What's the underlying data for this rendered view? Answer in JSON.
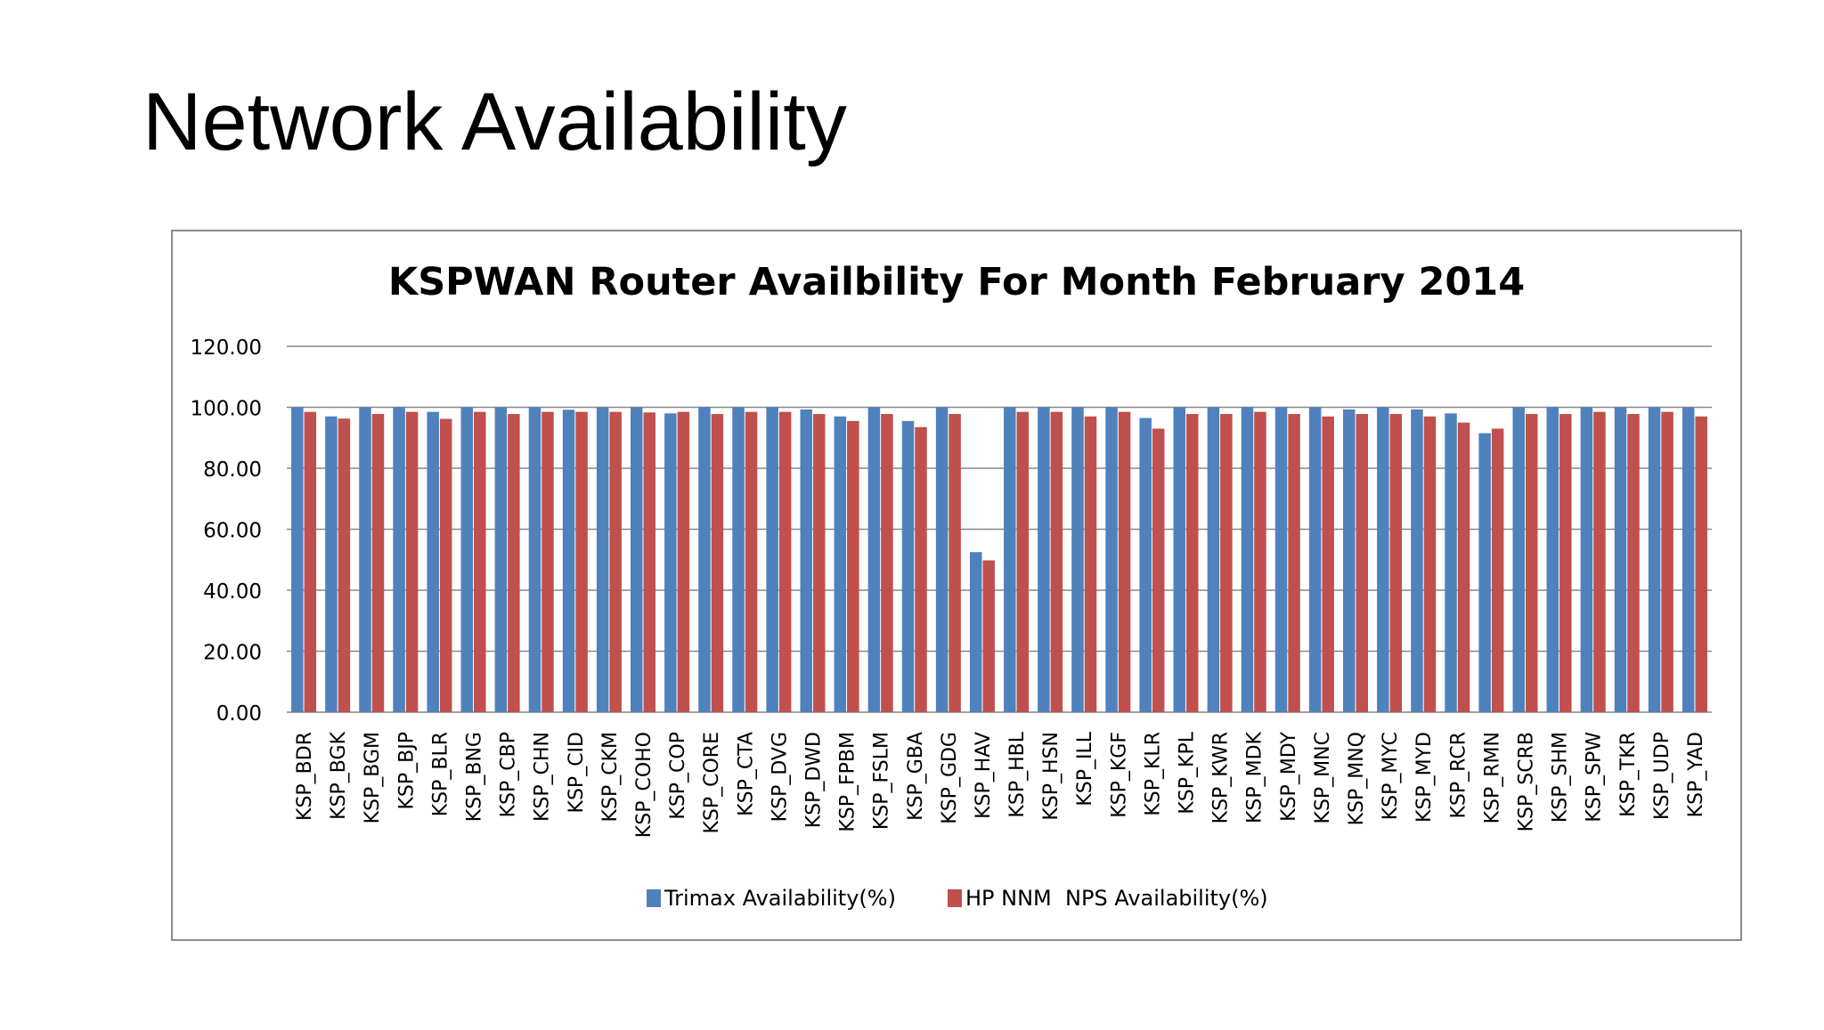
{
  "slide": {
    "title": "Network Availability"
  },
  "colors": {
    "series_1": "#4f81bd",
    "series_2": "#c0504d",
    "gridline": "#878787",
    "frame_border": "#8c8c8c",
    "text": "#000000"
  },
  "chart_data": {
    "type": "bar",
    "title": "KSPWAN Router Availbility For Month February 2014",
    "xlabel": "",
    "ylabel": "",
    "ylim": [
      0,
      120
    ],
    "y_ticks": [
      "0.00",
      "20.00",
      "40.00",
      "60.00",
      "80.00",
      "100.00",
      "120.00"
    ],
    "grid": true,
    "legend_position": "bottom",
    "categories": [
      "KSP_BDR",
      "KSP_BGK",
      "KSP_BGM",
      "KSP_BJP",
      "KSP_BLR",
      "KSP_BNG",
      "KSP_CBP",
      "KSP_CHN",
      "KSP_CID",
      "KSP_CKM",
      "KSP_COHO",
      "KSP_COP",
      "KSP_CORE",
      "KSP_CTA",
      "KSP_DVG",
      "KSP_DWD",
      "KSP_FPBM",
      "KSP_FSLM",
      "KSP_GBA",
      "KSP_GDG",
      "KSP_HAV",
      "KSP_HBL",
      "KSP_HSN",
      "KSP_ILL",
      "KSP_KGF",
      "KSP_KLR",
      "KSP_KPL",
      "KSP_KWR",
      "KSP_MDK",
      "KSP_MDY",
      "KSP_MNC",
      "KSP_MNQ",
      "KSP_MYC",
      "KSP_MYD",
      "KSP_RCR",
      "KSP_RMN",
      "KSP_SCRB",
      "KSP_SHM",
      "KSP_SPW",
      "KSP_TKR",
      "KSP_UDP",
      "KSP_YAD"
    ],
    "series": [
      {
        "name": "Trimax Availability(%)",
        "color": "#4f81bd",
        "values": [
          100.0,
          97.0,
          100.0,
          100.0,
          98.5,
          100.0,
          100.0,
          100.0,
          99.2,
          100.0,
          100.0,
          98.0,
          100.0,
          100.0,
          100.0,
          99.3,
          97.0,
          100.0,
          95.5,
          100.0,
          52.5,
          100.0,
          100.0,
          100.0,
          100.0,
          96.5,
          100.0,
          100.0,
          100.0,
          100.0,
          100.0,
          99.3,
          100.0,
          99.3,
          98.0,
          91.5,
          100.0,
          100.0,
          100.0,
          100.0,
          100.0,
          100.0
        ]
      },
      {
        "name": "HP NNM  NPS Availability(%)",
        "color": "#c0504d",
        "values": [
          98.5,
          96.3,
          97.8,
          98.5,
          96.2,
          98.5,
          97.8,
          98.5,
          98.5,
          98.5,
          98.3,
          98.5,
          97.8,
          98.5,
          98.5,
          97.8,
          95.5,
          97.8,
          93.5,
          97.8,
          49.8,
          98.5,
          98.5,
          97.0,
          98.5,
          93.0,
          97.8,
          97.8,
          98.5,
          97.8,
          97.0,
          97.8,
          97.8,
          97.0,
          95.0,
          93.0,
          97.8,
          97.8,
          98.5,
          97.8,
          98.5,
          97.0
        ]
      }
    ]
  }
}
